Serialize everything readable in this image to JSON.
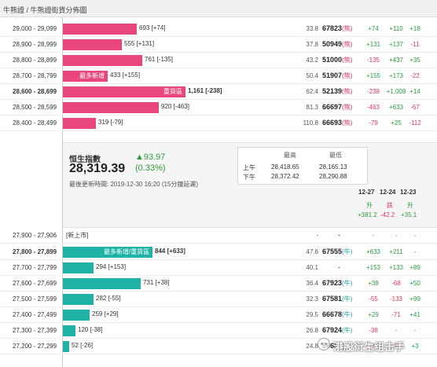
{
  "breadcrumb": "牛熊證 / 牛熊證街貨分佈圖",
  "colors": {
    "bear_bar": "#e8467c",
    "bull_bar": "#1fb3a8",
    "positive": "#2e9b3f",
    "negative": "#e03a5a"
  },
  "bear_rows": [
    {
      "range": "29,000 - 29,099",
      "qty": "693 [+74]",
      "ratio": "33.8",
      "price": "67823",
      "type": "(熊)",
      "chg1": "+74",
      "chg2": "+110",
      "chg3": "+18",
      "bar_pct": 0.36
    },
    {
      "range": "28,900 - 28,999",
      "qty": "555 [+131]",
      "ratio": "37.8",
      "price": "50949",
      "type": "(熊)",
      "chg1": "+131",
      "chg2": "+137",
      "chg3": "-11",
      "bar_pct": 0.29
    },
    {
      "range": "28,800 - 28,899",
      "qty": "761 [-135]",
      "ratio": "43.2",
      "price": "51000",
      "type": "(熊)",
      "chg1": "-135",
      "chg2": "+437",
      "chg3": "+35",
      "bar_pct": 0.39
    },
    {
      "range": "28,700 - 28,799",
      "tag": "最多新增",
      "qty": "433 [+155]",
      "ratio": "50.4",
      "price": "51907",
      "type": "(熊)",
      "chg1": "+155",
      "chg2": "+173",
      "chg3": "-22",
      "bar_pct": 0.22
    },
    {
      "range": "28,600 - 28,699",
      "tag": "重貨區",
      "qty": "1,161 [-238]",
      "ratio": "62.4",
      "price": "52139",
      "type": "(熊)",
      "chg1": "-238",
      "chg2": "+1,008",
      "chg3": "+14",
      "bar_pct": 0.6
    },
    {
      "range": "28,500 - 28,599",
      "qty": "920 [-463]",
      "ratio": "81.3",
      "price": "66697",
      "type": "(熊)",
      "chg1": "-463",
      "chg2": "+633",
      "chg3": "-67",
      "bar_pct": 0.47
    },
    {
      "range": "28,400 - 28,499",
      "qty": "319 [-79]",
      "ratio": "110.8",
      "price": "66693",
      "type": "(熊)",
      "chg1": "-79",
      "chg2": "+25",
      "chg3": "-112",
      "bar_pct": 0.16
    }
  ],
  "index": {
    "label": "恒生指數",
    "value": "28,319.39",
    "change": "▲93.97",
    "pct": "(0.33%)",
    "updated": "最後更新時間: 2019-12-30 16:20 (15分鐘延遲)",
    "high_label": "最高",
    "low_label": "最低",
    "am_label": "上午",
    "pm_label": "下午",
    "am_high": "28,418.65",
    "am_low": "28,165.13",
    "pm_high": "28,372.42",
    "pm_low": "28,290.88"
  },
  "dates": [
    "12-27",
    "12-24",
    "12-23"
  ],
  "directions": [
    {
      "text": "升",
      "kind": "pos"
    },
    {
      "text": "跌",
      "kind": "neg"
    },
    {
      "text": "升",
      "kind": "pos"
    }
  ],
  "diffs": [
    "+381.2",
    "-42.2",
    "+35.1"
  ],
  "new_row": {
    "range": "27,900 - 27,906",
    "label": "[新上市]",
    "ratio": "-",
    "price": "-",
    "chg1": "-",
    "chg2": "-",
    "chg3": "-"
  },
  "bull_rows": [
    {
      "range": "27,800 - 27,899",
      "tag": "最多新增/重貨區",
      "qty": "844 [+633]",
      "ratio": "47.6",
      "price": "67555",
      "type": "(牛)",
      "chg1": "+633",
      "chg2": "+211",
      "chg3": "-",
      "bar_pct": 0.44,
      "bold": true
    },
    {
      "range": "27,700 - 27,799",
      "qty": "294 [+153]",
      "ratio": "40.1",
      "price": "-",
      "type": "",
      "chg1": "+153",
      "chg2": "+133",
      "chg3": "+89",
      "bar_pct": 0.15
    },
    {
      "range": "27,600 - 27,699",
      "qty": "731 [+38]",
      "ratio": "36.4",
      "price": "67923",
      "type": "(牛)",
      "chg1": "+38",
      "chg2": "-68",
      "chg3": "+50",
      "bar_pct": 0.38
    },
    {
      "range": "27,500 - 27,599",
      "qty": "282 [-55]",
      "ratio": "32.3",
      "price": "67581",
      "type": "(牛)",
      "chg1": "-55",
      "chg2": "-133",
      "chg3": "+99",
      "bar_pct": 0.15
    },
    {
      "range": "27,400 - 27,499",
      "qty": "259 [+29]",
      "ratio": "29.5",
      "price": "66678",
      "type": "(牛)",
      "chg1": "+29",
      "chg2": "-71",
      "chg3": "+41",
      "bar_pct": 0.13
    },
    {
      "range": "27,300 - 27,399",
      "qty": "120 [-38]",
      "ratio": "26.8",
      "price": "67924",
      "type": "(牛)",
      "chg1": "-38",
      "chg2": "-",
      "chg3": "-",
      "bar_pct": 0.06
    },
    {
      "range": "27,200 - 27,299",
      "qty": "52 [-26]",
      "ratio": "24.8",
      "price": "66684",
      "type": "(牛)",
      "chg1": "-26",
      "chg2": "-17",
      "chg3": "+3",
      "bar_pct": 0.03
    }
  ],
  "watermark": {
    "text": "港股衍生组击手",
    "icon": "wechat-icon"
  }
}
